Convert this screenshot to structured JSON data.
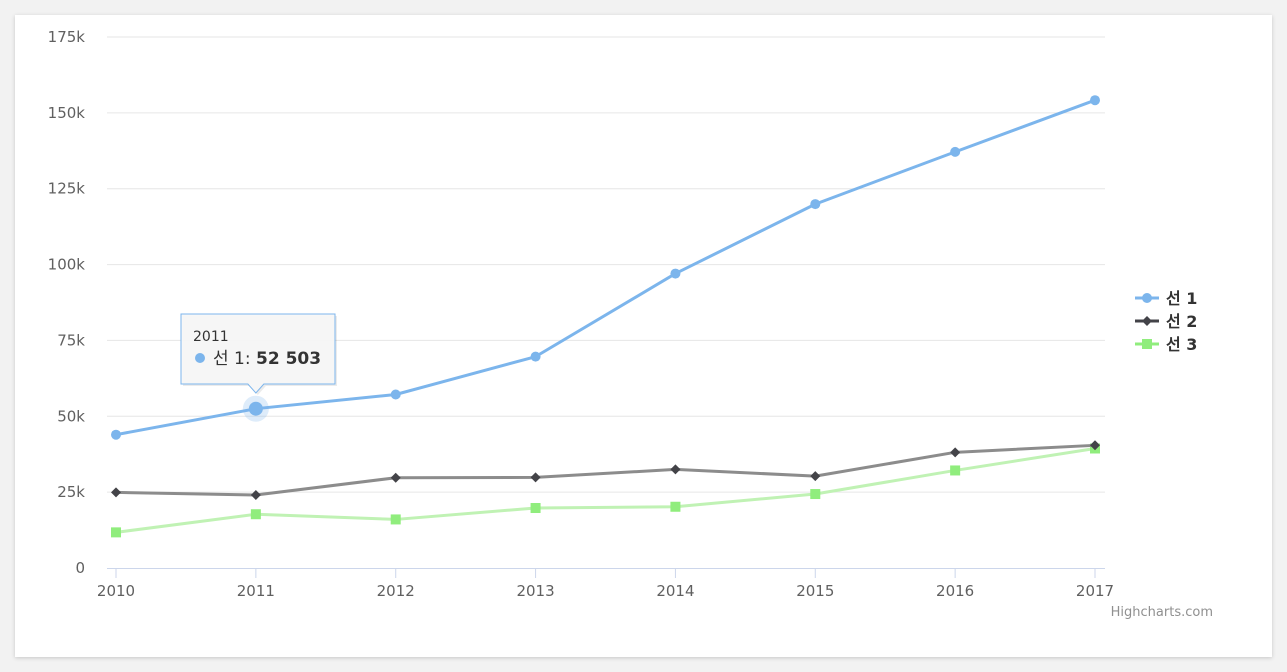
{
  "chart_data": {
    "type": "line",
    "title": "",
    "xlabel": "",
    "ylabel": "",
    "x": [
      "2010",
      "2011",
      "2012",
      "2013",
      "2014",
      "2015",
      "2016",
      "2017"
    ],
    "ylim": [
      0,
      175000
    ],
    "y_ticks": [
      0,
      25000,
      50000,
      75000,
      100000,
      125000,
      150000,
      175000
    ],
    "y_tick_labels": [
      "0",
      "25k",
      "50k",
      "75k",
      "100k",
      "125k",
      "150k",
      "175k"
    ],
    "grid": true,
    "legend_position": "right",
    "series": [
      {
        "name": "선 1",
        "color": "#7cb5ec",
        "marker": "circle",
        "values": [
          43934,
          52503,
          57177,
          69658,
          97031,
          119931,
          137133,
          154175
        ]
      },
      {
        "name": "선 2",
        "color": "#434348",
        "line_color": "#8c8c8c",
        "marker": "diamond",
        "values": [
          24916,
          24064,
          29742,
          29851,
          32490,
          30282,
          38121,
          40434
        ]
      },
      {
        "name": "선 3",
        "color": "#90ed7d",
        "line_color": "#c0f2b4",
        "marker": "square",
        "values": [
          11744,
          17722,
          16005,
          19771,
          20185,
          24377,
          32147,
          39387
        ]
      }
    ],
    "tooltip": {
      "x": "2011",
      "series": "선 1",
      "label": "선 1: ",
      "value": "52 503",
      "series_index": 0,
      "point_index": 1
    }
  },
  "credits": "Highcharts.com"
}
